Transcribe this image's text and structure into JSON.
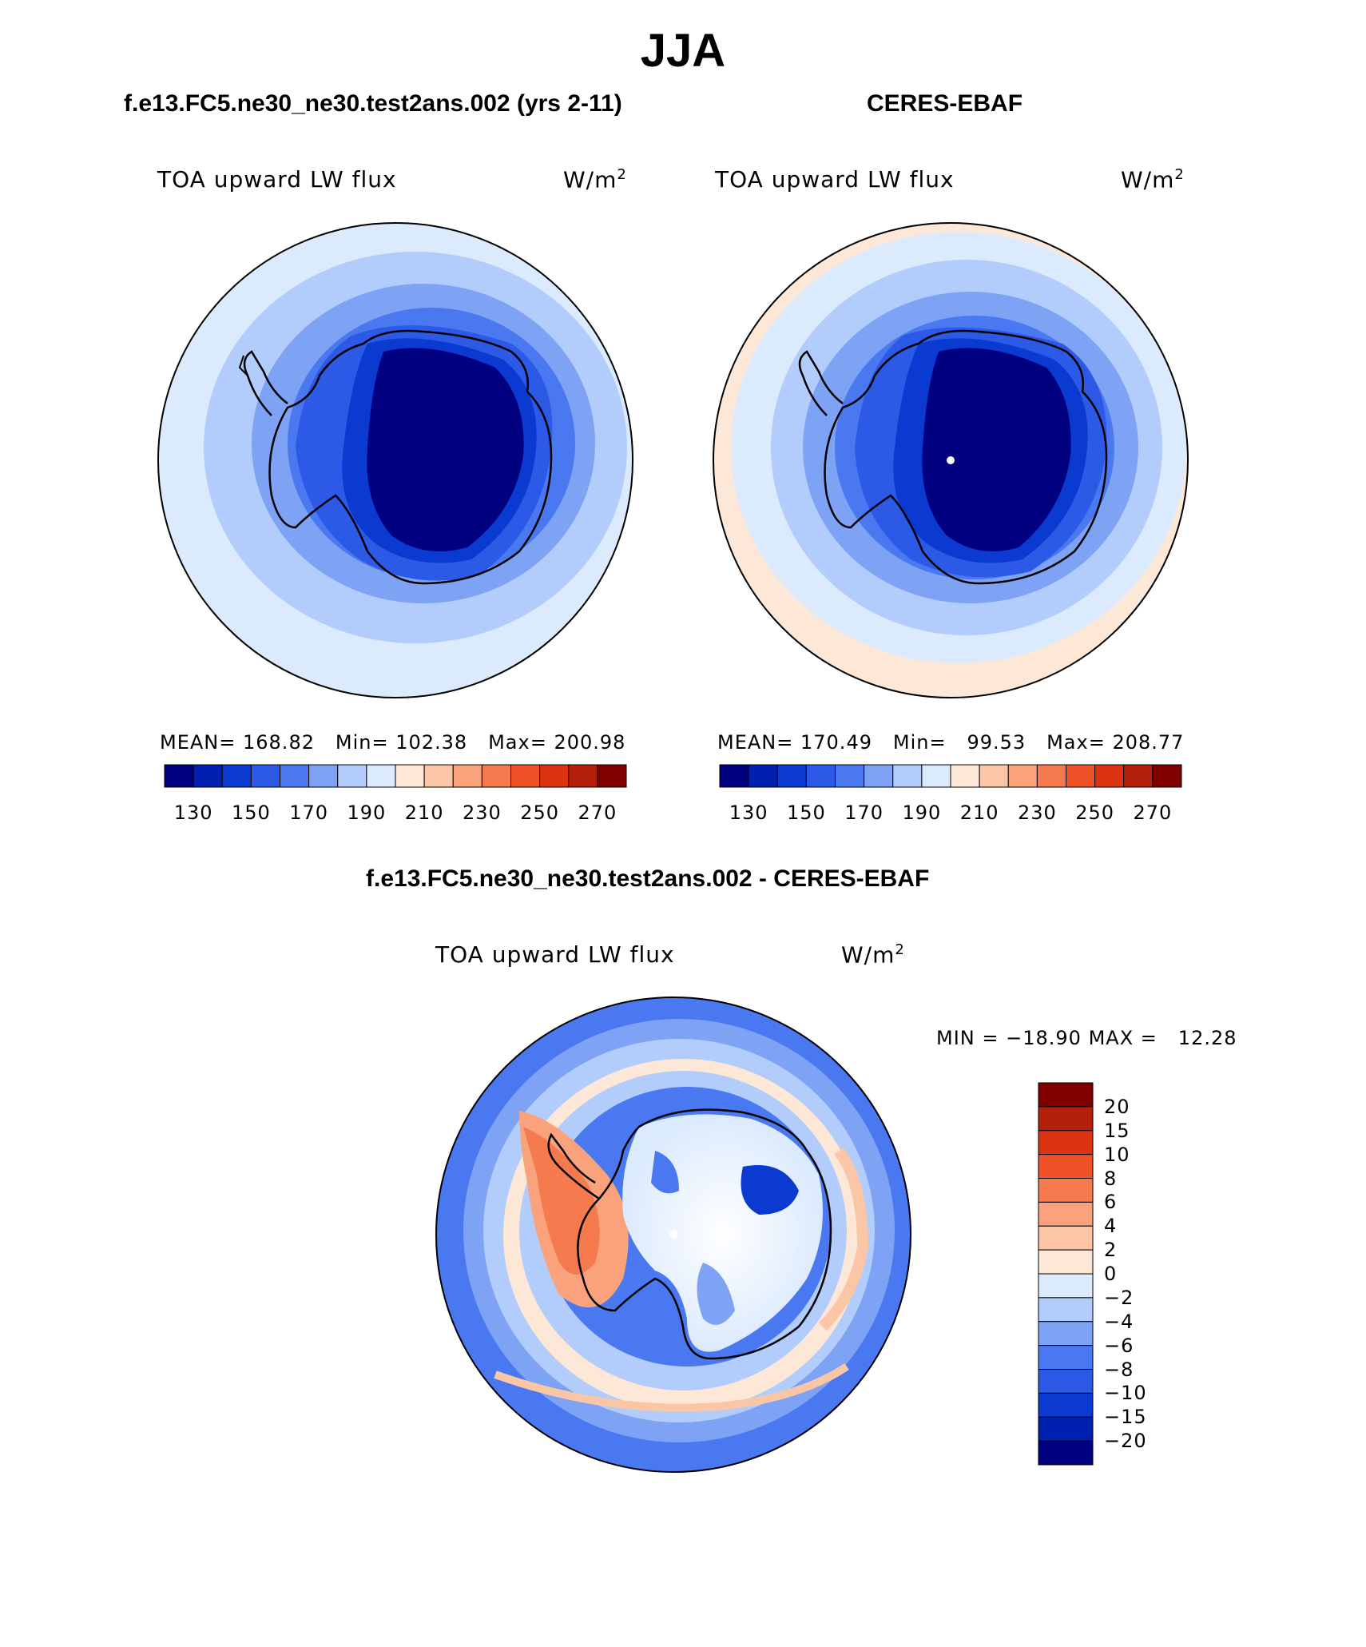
{
  "title": "JJA",
  "colors": {
    "neg": [
      "#000080",
      "#0020b0",
      "#0a3ad0",
      "#2c5ae6",
      "#4a78f0",
      "#7ea2f4",
      "#b2ccfb",
      "#dceafe"
    ],
    "pos": [
      "#fde8d8",
      "#fbc6a6",
      "#f9a27c",
      "#f57a4e",
      "#ee5226",
      "#dc3410",
      "#b5200a",
      "#800000"
    ],
    "land_outline": "#000000"
  },
  "panel_left": {
    "title": "f.e13.FC5.ne30_ne30.test2ans.002 (yrs 2-11)",
    "variable": "TOA upward LW flux",
    "units": "W/m",
    "units_sup": "2",
    "mean_label": "MEAN=",
    "mean_value": "168.82",
    "min_label": "Min=",
    "min_value": "102.38",
    "max_label": "Max=",
    "max_value": "200.98"
  },
  "panel_right": {
    "title": "CERES-EBAF",
    "variable": "TOA upward LW flux",
    "units": "W/m",
    "units_sup": "2",
    "mean_label": "MEAN=",
    "mean_value": "170.49",
    "min_label": "Min=",
    "min_value": "99.53",
    "max_label": "Max=",
    "max_value": "208.77"
  },
  "colorbar_top": {
    "ticks": [
      "130",
      "150",
      "170",
      "190",
      "210",
      "230",
      "250",
      "270"
    ]
  },
  "panel_diff": {
    "title": "f.e13.FC5.ne30_ne30.test2ans.002 - CERES-EBAF",
    "variable": "TOA upward LW flux",
    "units": "W/m",
    "units_sup": "2",
    "minmax_label": "MIN =",
    "min_value": "−18.90",
    "max_label": "MAX =",
    "max_value": "12.28"
  },
  "colorbar_diff": {
    "ticks": [
      "20",
      "15",
      "10",
      "8",
      "6",
      "4",
      "2",
      "0",
      "−2",
      "−4",
      "−6",
      "−8",
      "−10",
      "−15",
      "−20"
    ]
  },
  "map_data": {
    "projection": "south polar stereographic",
    "region": "Antarctica / Southern Ocean",
    "season": "JJA",
    "field": "TOA upward LW flux",
    "contour_levels_full": [
      130,
      140,
      150,
      160,
      170,
      180,
      190,
      200,
      210,
      220,
      230,
      240,
      250,
      260,
      270
    ],
    "contour_levels_diff": [
      -20,
      -15,
      -10,
      -8,
      -6,
      -4,
      -2,
      0,
      2,
      4,
      6,
      8,
      10,
      15,
      20
    ]
  }
}
